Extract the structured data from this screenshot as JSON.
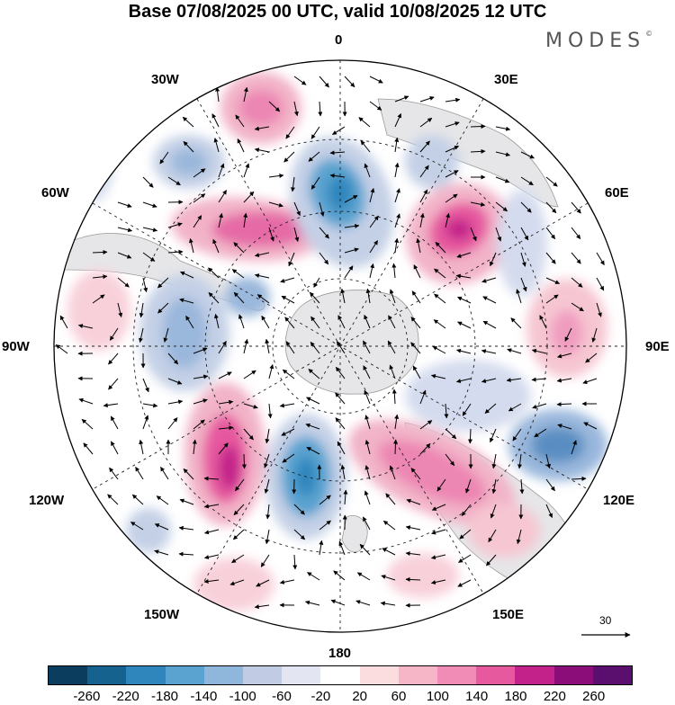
{
  "title": "Base 07/08/2025 00 UTC, valid 10/08/2025 12 UTC",
  "brand": {
    "name": "MODES",
    "mark": "©"
  },
  "longitude_labels": {
    "top": "0",
    "bottom": "180",
    "left": "90W",
    "right": "90E",
    "nw30": "30W",
    "nw60": "60W",
    "ne30": "30E",
    "ne60": "60E",
    "sw120": "120W",
    "sw150": "150W",
    "se120": "120E",
    "se150": "150E"
  },
  "vector_scale": {
    "value": "30"
  },
  "colorbar": {
    "colors": [
      "#0b3d5e",
      "#16628f",
      "#2e86bd",
      "#5aa3d0",
      "#8fb7db",
      "#c2cbe4",
      "#e4e5f2",
      "#ffffff",
      "#fbdde0",
      "#f6b6c8",
      "#f08cb6",
      "#e6599f",
      "#c3228a",
      "#8a0d7a",
      "#5a0e6e"
    ],
    "ticks": [
      "-260",
      "-220",
      "-180",
      "-140",
      "-100",
      "-60",
      "-20",
      "20",
      "60",
      "100",
      "140",
      "180",
      "220",
      "260"
    ]
  }
}
